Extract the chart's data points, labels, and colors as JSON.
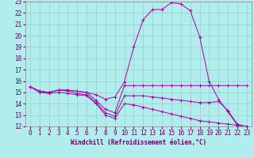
{
  "background_color": "#b2eded",
  "grid_color": "#99cccc",
  "line_color": "#aa00aa",
  "xlabel": "Windchill (Refroidissement éolien,°C)",
  "xlim": [
    -0.5,
    23.5
  ],
  "ylim": [
    12,
    23
  ],
  "yticks": [
    12,
    13,
    14,
    15,
    16,
    17,
    18,
    19,
    20,
    21,
    22,
    23
  ],
  "xticks": [
    0,
    1,
    2,
    3,
    4,
    5,
    6,
    7,
    8,
    9,
    10,
    11,
    12,
    13,
    14,
    15,
    16,
    17,
    18,
    19,
    20,
    21,
    22,
    23
  ],
  "series": [
    {
      "x": [
        0,
        1,
        2,
        3,
        4,
        5,
        6,
        7,
        8,
        9,
        10,
        11,
        12,
        13,
        14,
        15,
        16,
        17,
        18,
        19,
        20,
        21,
        22,
        23
      ],
      "y": [
        15.5,
        15.1,
        15.0,
        15.2,
        15.2,
        15.1,
        15.0,
        14.8,
        14.4,
        14.6,
        15.9,
        19.0,
        21.4,
        22.3,
        22.3,
        22.9,
        22.8,
        22.2,
        19.9,
        16.0,
        14.4,
        13.3,
        12.1,
        11.9
      ]
    },
    {
      "x": [
        0,
        1,
        2,
        3,
        4,
        5,
        6,
        7,
        8,
        9,
        10,
        11,
        12,
        13,
        14,
        15,
        16,
        17,
        18,
        19,
        20,
        21,
        22,
        23
      ],
      "y": [
        15.5,
        15.1,
        15.0,
        15.2,
        15.2,
        15.1,
        15.0,
        14.3,
        13.5,
        13.2,
        15.6,
        15.6,
        15.6,
        15.6,
        15.6,
        15.6,
        15.6,
        15.6,
        15.6,
        15.6,
        15.6,
        15.6,
        15.6,
        15.6
      ]
    },
    {
      "x": [
        0,
        1,
        2,
        3,
        4,
        5,
        6,
        7,
        8,
        9,
        10,
        11,
        12,
        13,
        14,
        15,
        16,
        17,
        18,
        19,
        20,
        21,
        22,
        23
      ],
      "y": [
        15.5,
        15.1,
        15.0,
        15.2,
        15.1,
        14.9,
        14.8,
        14.1,
        13.2,
        12.9,
        14.7,
        14.7,
        14.7,
        14.6,
        14.5,
        14.4,
        14.3,
        14.2,
        14.1,
        14.1,
        14.2,
        13.4,
        12.2,
        12.0
      ]
    },
    {
      "x": [
        0,
        1,
        2,
        3,
        4,
        5,
        6,
        7,
        8,
        9,
        10,
        11,
        12,
        13,
        14,
        15,
        16,
        17,
        18,
        19,
        20,
        21,
        22,
        23
      ],
      "y": [
        15.5,
        15.0,
        14.9,
        15.0,
        14.9,
        14.8,
        14.7,
        14.0,
        13.0,
        12.7,
        14.0,
        13.9,
        13.7,
        13.5,
        13.3,
        13.1,
        12.9,
        12.7,
        12.5,
        12.4,
        12.3,
        12.2,
        12.1,
        11.9
      ]
    }
  ],
  "tick_fontsize": 5.5,
  "xlabel_fontsize": 5.5,
  "linewidth": 0.7,
  "markersize": 2.5
}
